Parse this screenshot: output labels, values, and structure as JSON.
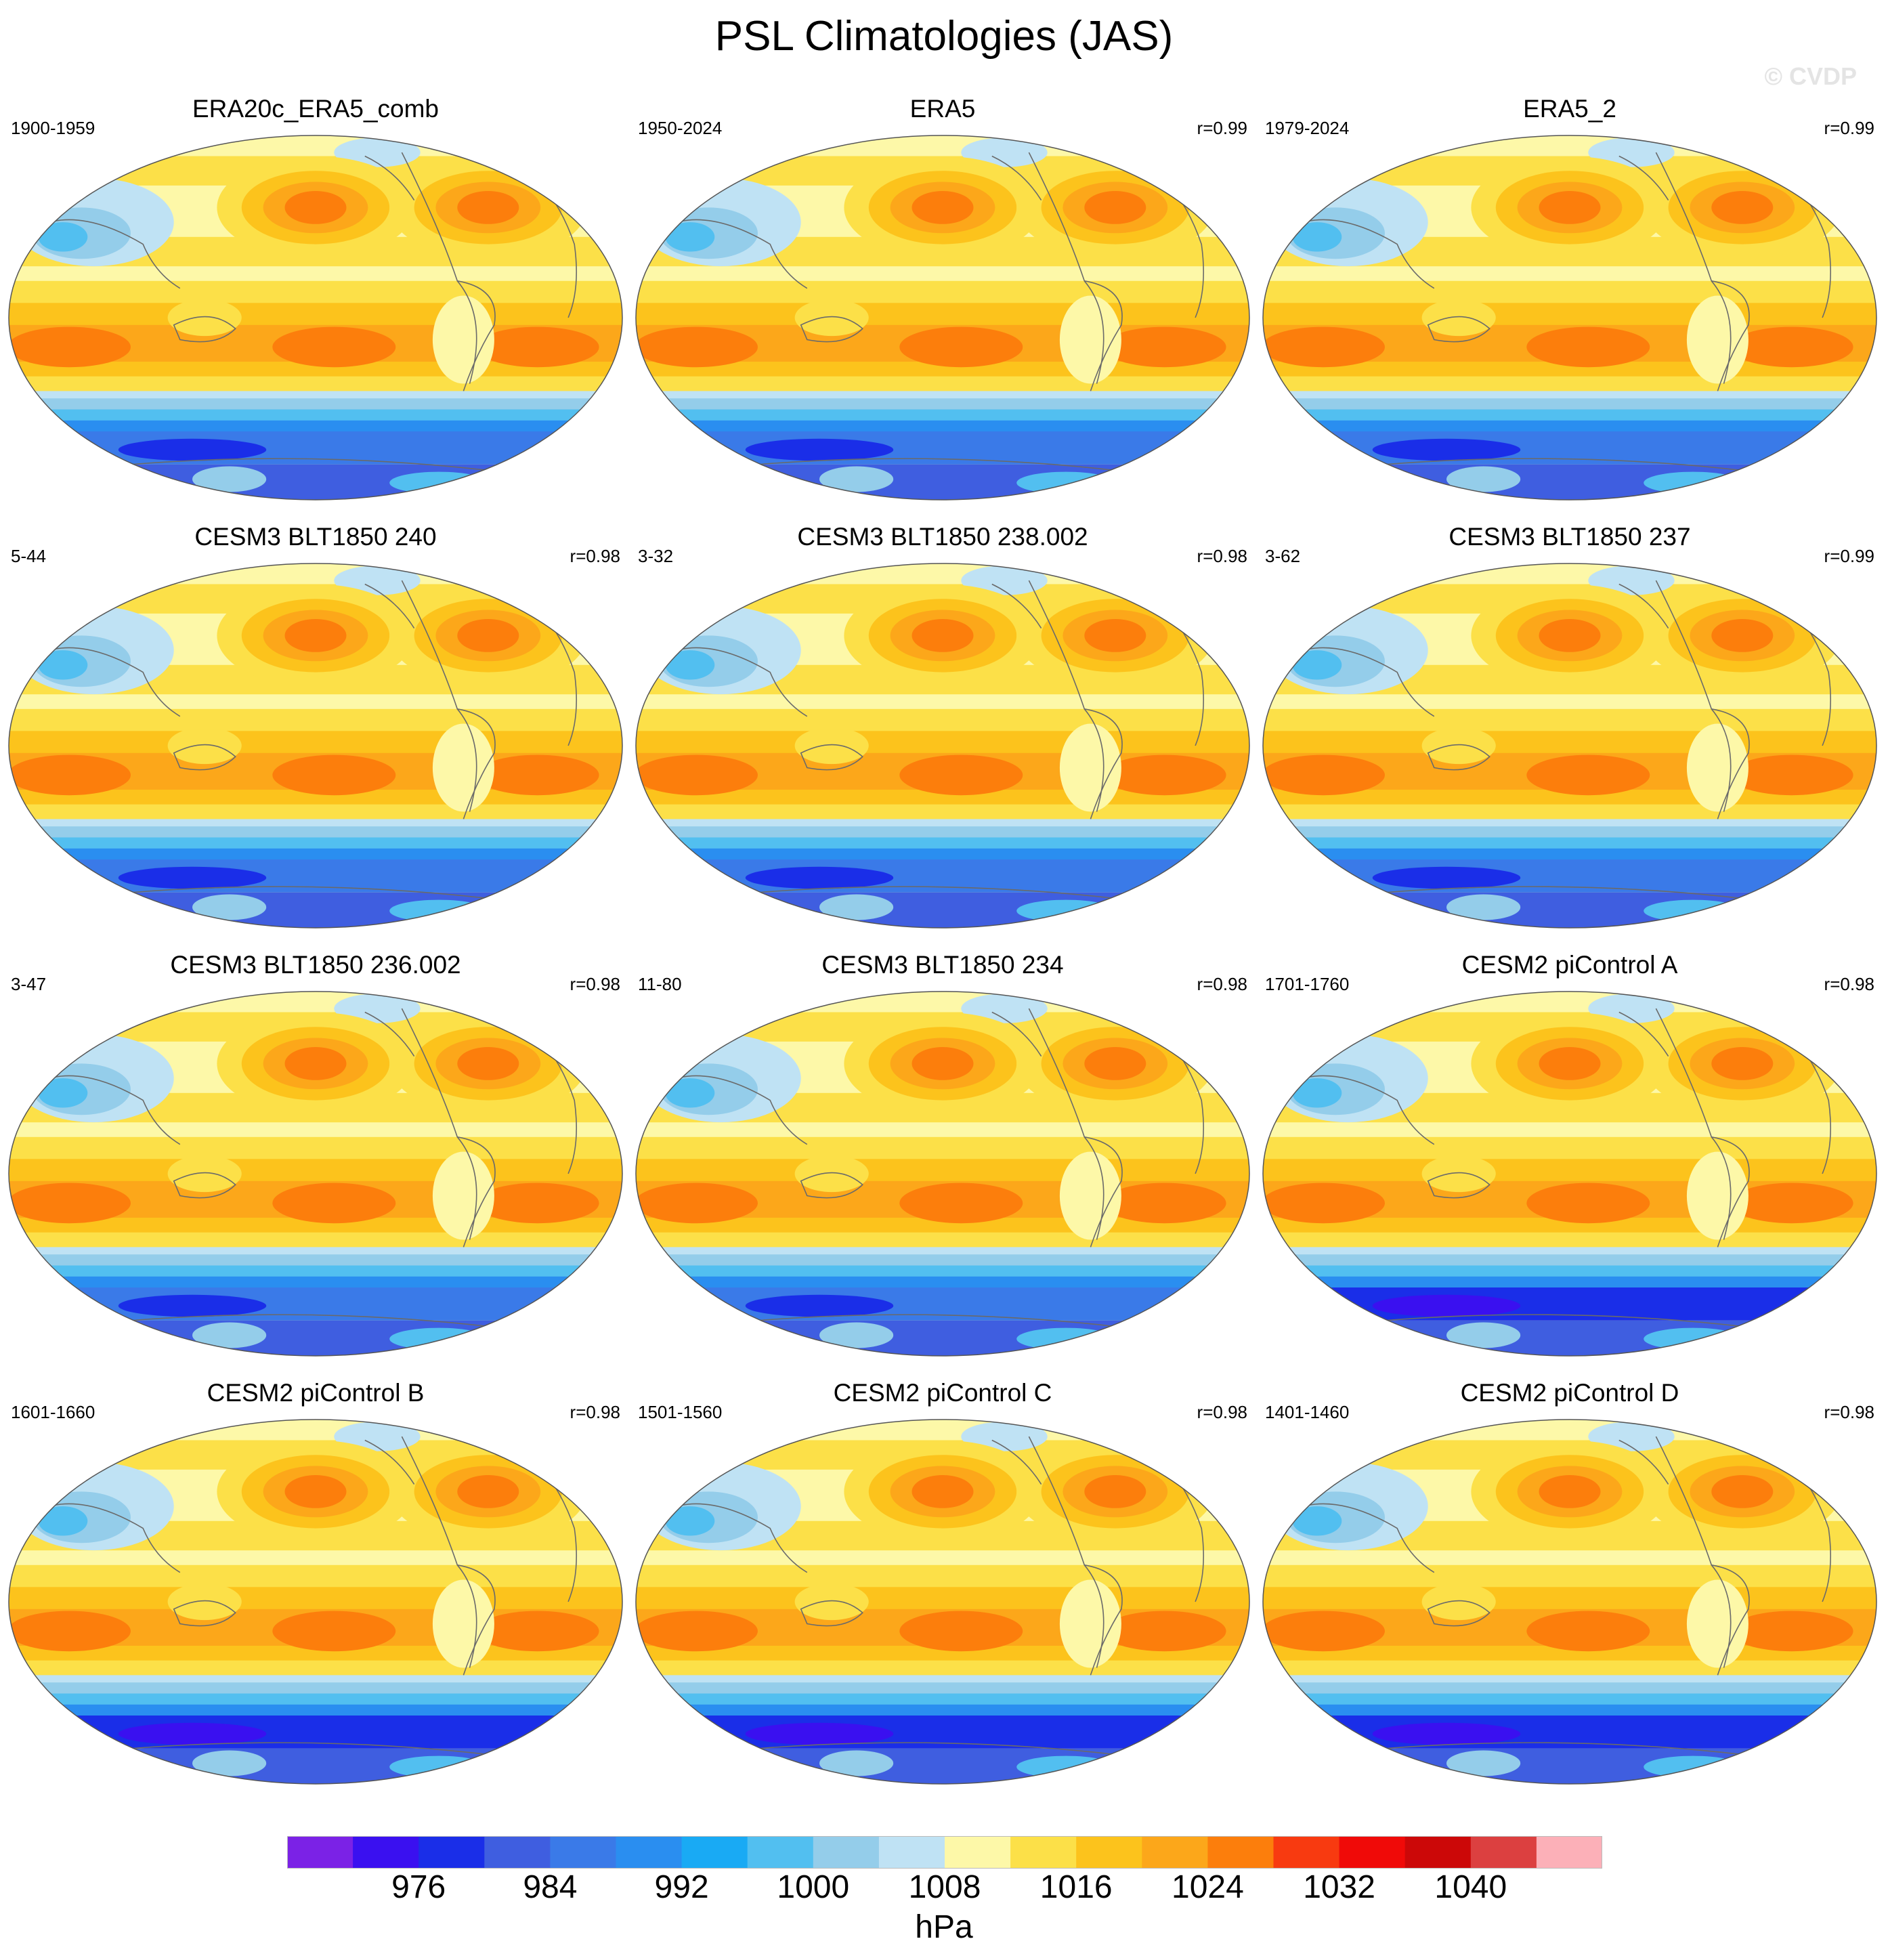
{
  "title": "PSL Climatologies (JAS)",
  "watermark": "© CVDP",
  "panels": [
    {
      "title": "ERA20c_ERA5_comb",
      "years": "1900-1959",
      "corr": ""
    },
    {
      "title": "ERA5",
      "years": "1950-2024",
      "corr": "r=0.99"
    },
    {
      "title": "ERA5_2",
      "years": "1979-2024",
      "corr": "r=0.99"
    },
    {
      "title": "CESM3 BLT1850 240",
      "years": "5-44",
      "corr": "r=0.98"
    },
    {
      "title": "CESM3 BLT1850 238.002",
      "years": "3-32",
      "corr": "r=0.98"
    },
    {
      "title": "CESM3 BLT1850 237",
      "years": "3-62",
      "corr": "r=0.99"
    },
    {
      "title": "CESM3 BLT1850 236.002",
      "years": "3-47",
      "corr": "r=0.98"
    },
    {
      "title": "CESM3 BLT1850 234",
      "years": "11-80",
      "corr": "r=0.98"
    },
    {
      "title": "CESM2 piControl A",
      "years": "1701-1760",
      "corr": "r=0.98"
    },
    {
      "title": "CESM2 piControl B",
      "years": "1601-1660",
      "corr": "r=0.98"
    },
    {
      "title": "CESM2 piControl C",
      "years": "1501-1560",
      "corr": "r=0.98"
    },
    {
      "title": "CESM2 piControl D",
      "years": "1401-1460",
      "corr": "r=0.98"
    }
  ],
  "colorbar": {
    "colors": [
      "#7b22e6",
      "#3a10f0",
      "#1a2ee8",
      "#3f5ee0",
      "#3a7ae8",
      "#2a8ef0",
      "#19aaf4",
      "#52bff0",
      "#94cdea",
      "#bfe2f4",
      "#fdf8a8",
      "#fce048",
      "#fcc31c",
      "#fca71a",
      "#fc7e0c",
      "#f83a10",
      "#f00a08",
      "#cc0808",
      "#dc4040",
      "#fcb0b8"
    ],
    "labels": [
      "976",
      "984",
      "992",
      "1000",
      "1008",
      "1016",
      "1024",
      "1032",
      "1040"
    ],
    "units": "hPa"
  }
}
